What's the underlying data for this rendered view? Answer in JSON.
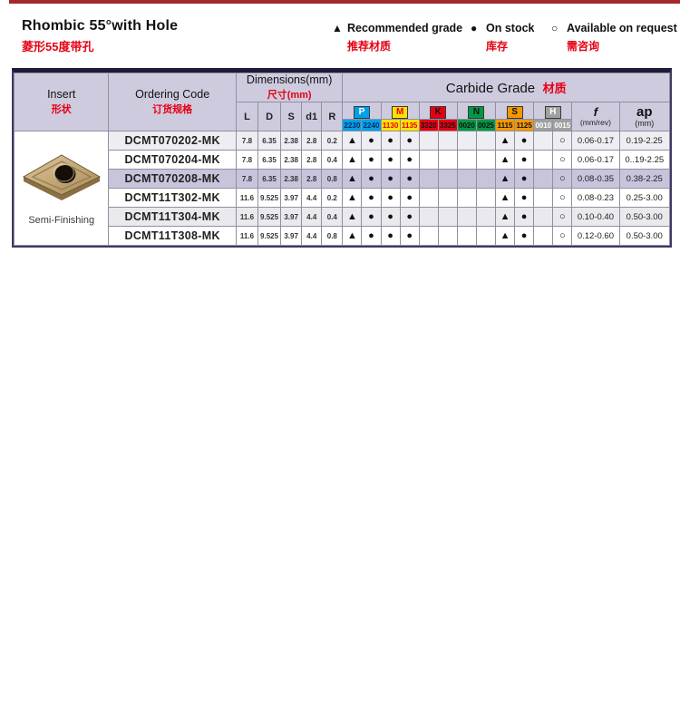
{
  "page": {
    "title_en": "Rhombic 55°with Hole",
    "title_zh": "菱形55度带孔",
    "colors": {
      "top_bar": "#a4282c",
      "accent_red": "#e60012",
      "header_bg": "#cecbdf",
      "highlight_row": "#c7c4dc",
      "grid_line": "#90909f"
    }
  },
  "legend": [
    {
      "symbol": "▲",
      "en": "Recommended grade",
      "zh": "推荐材质"
    },
    {
      "symbol": "●",
      "en": "On stock",
      "zh": "库存"
    },
    {
      "symbol": "○",
      "en": "Available on request",
      "zh": "需咨询"
    }
  ],
  "table": {
    "headers": {
      "insert_en": "Insert",
      "insert_zh": "形状",
      "ordering_en": "Ordering Code",
      "ordering_zh": "订货规格",
      "dimensions_en": "Dimensions(mm)",
      "dimensions_zh": "尺寸(mm)",
      "dim_cols": [
        "L",
        "D",
        "S",
        "d1",
        "R"
      ],
      "carbide_en": "Carbide Grade",
      "carbide_zh": "材质",
      "grades": [
        {
          "letter": "P",
          "bg": "#00a0e9",
          "letter_color": "#ffffff",
          "num_color": "#0a2a66",
          "numbers": [
            "2230",
            "2240"
          ]
        },
        {
          "letter": "M",
          "bg": "#ffe100",
          "letter_color": "#e60012",
          "num_color": "#e60012",
          "numbers": [
            "1130",
            "1135"
          ]
        },
        {
          "letter": "K",
          "bg": "#e60012",
          "letter_color": "#111111",
          "num_color": "#111111",
          "numbers": [
            "3320",
            "3325"
          ]
        },
        {
          "letter": "N",
          "bg": "#009944",
          "letter_color": "#111111",
          "num_color": "#111111",
          "numbers": [
            "0020",
            "0025"
          ]
        },
        {
          "letter": "S",
          "bg": "#f39800",
          "letter_color": "#111111",
          "num_color": "#111111",
          "numbers": [
            "1115",
            "1125"
          ]
        },
        {
          "letter": "H",
          "bg": "#9fa0a0",
          "letter_color": "#ffffff",
          "num_color": "#ffffff",
          "numbers": [
            "0010",
            "0015"
          ]
        }
      ],
      "f_label": "f",
      "f_unit": "(mm/rev)",
      "ap_label": "ap",
      "ap_unit": "(mm)"
    },
    "insert": {
      "caption": "Semi-Finishing"
    },
    "rows": [
      {
        "code": "DCMT070202-MK",
        "dims": [
          "7.8",
          "6.35",
          "2.38",
          "2.8",
          "0.2"
        ],
        "marks": [
          "▲",
          "●",
          "●",
          "●",
          "",
          "",
          "",
          "",
          "▲",
          "●",
          "",
          "○"
        ],
        "f": "0.06-0.17",
        "ap": "0.19-2.25",
        "bg": "#ededf2"
      },
      {
        "code": "DCMT070204-MK",
        "dims": [
          "7.8",
          "6.35",
          "2.38",
          "2.8",
          "0.4"
        ],
        "marks": [
          "▲",
          "●",
          "●",
          "●",
          "",
          "",
          "",
          "",
          "▲",
          "●",
          "",
          "○"
        ],
        "f": "0.06-0.17",
        "ap": "0..19-2.25",
        "bg": "#ffffff"
      },
      {
        "code": "DCMT070208-MK",
        "dims": [
          "7.8",
          "6.35",
          "2.38",
          "2.8",
          "0.8"
        ],
        "marks": [
          "▲",
          "●",
          "●",
          "●",
          "",
          "",
          "",
          "",
          "▲",
          "●",
          "",
          "○"
        ],
        "f": "0.08-0.35",
        "ap": "0.38-2.25",
        "bg": "#c7c4dc"
      },
      {
        "code": "DCMT11T302-MK",
        "dims": [
          "11.6",
          "9.525",
          "3.97",
          "4.4",
          "0.2"
        ],
        "marks": [
          "▲",
          "●",
          "●",
          "●",
          "",
          "",
          "",
          "",
          "▲",
          "●",
          "",
          "○"
        ],
        "f": "0.08-0.23",
        "ap": "0.25-3.00",
        "bg": "#ffffff"
      },
      {
        "code": "DCMT11T304-MK",
        "dims": [
          "11.6",
          "9.525",
          "3.97",
          "4.4",
          "0.4"
        ],
        "marks": [
          "▲",
          "●",
          "●",
          "●",
          "",
          "",
          "",
          "",
          "▲",
          "●",
          "",
          "○"
        ],
        "f": "0.10-0.40",
        "ap": "0.50-3.00",
        "bg": "#e9e9ee"
      },
      {
        "code": "DCMT11T308-MK",
        "dims": [
          "11.6",
          "9.525",
          "3.97",
          "4.4",
          "0.8"
        ],
        "marks": [
          "▲",
          "●",
          "●",
          "●",
          "",
          "",
          "",
          "",
          "▲",
          "●",
          "",
          "○"
        ],
        "f": "0.12-0.60",
        "ap": "0.50-3.00",
        "bg": "#ffffff"
      }
    ]
  }
}
